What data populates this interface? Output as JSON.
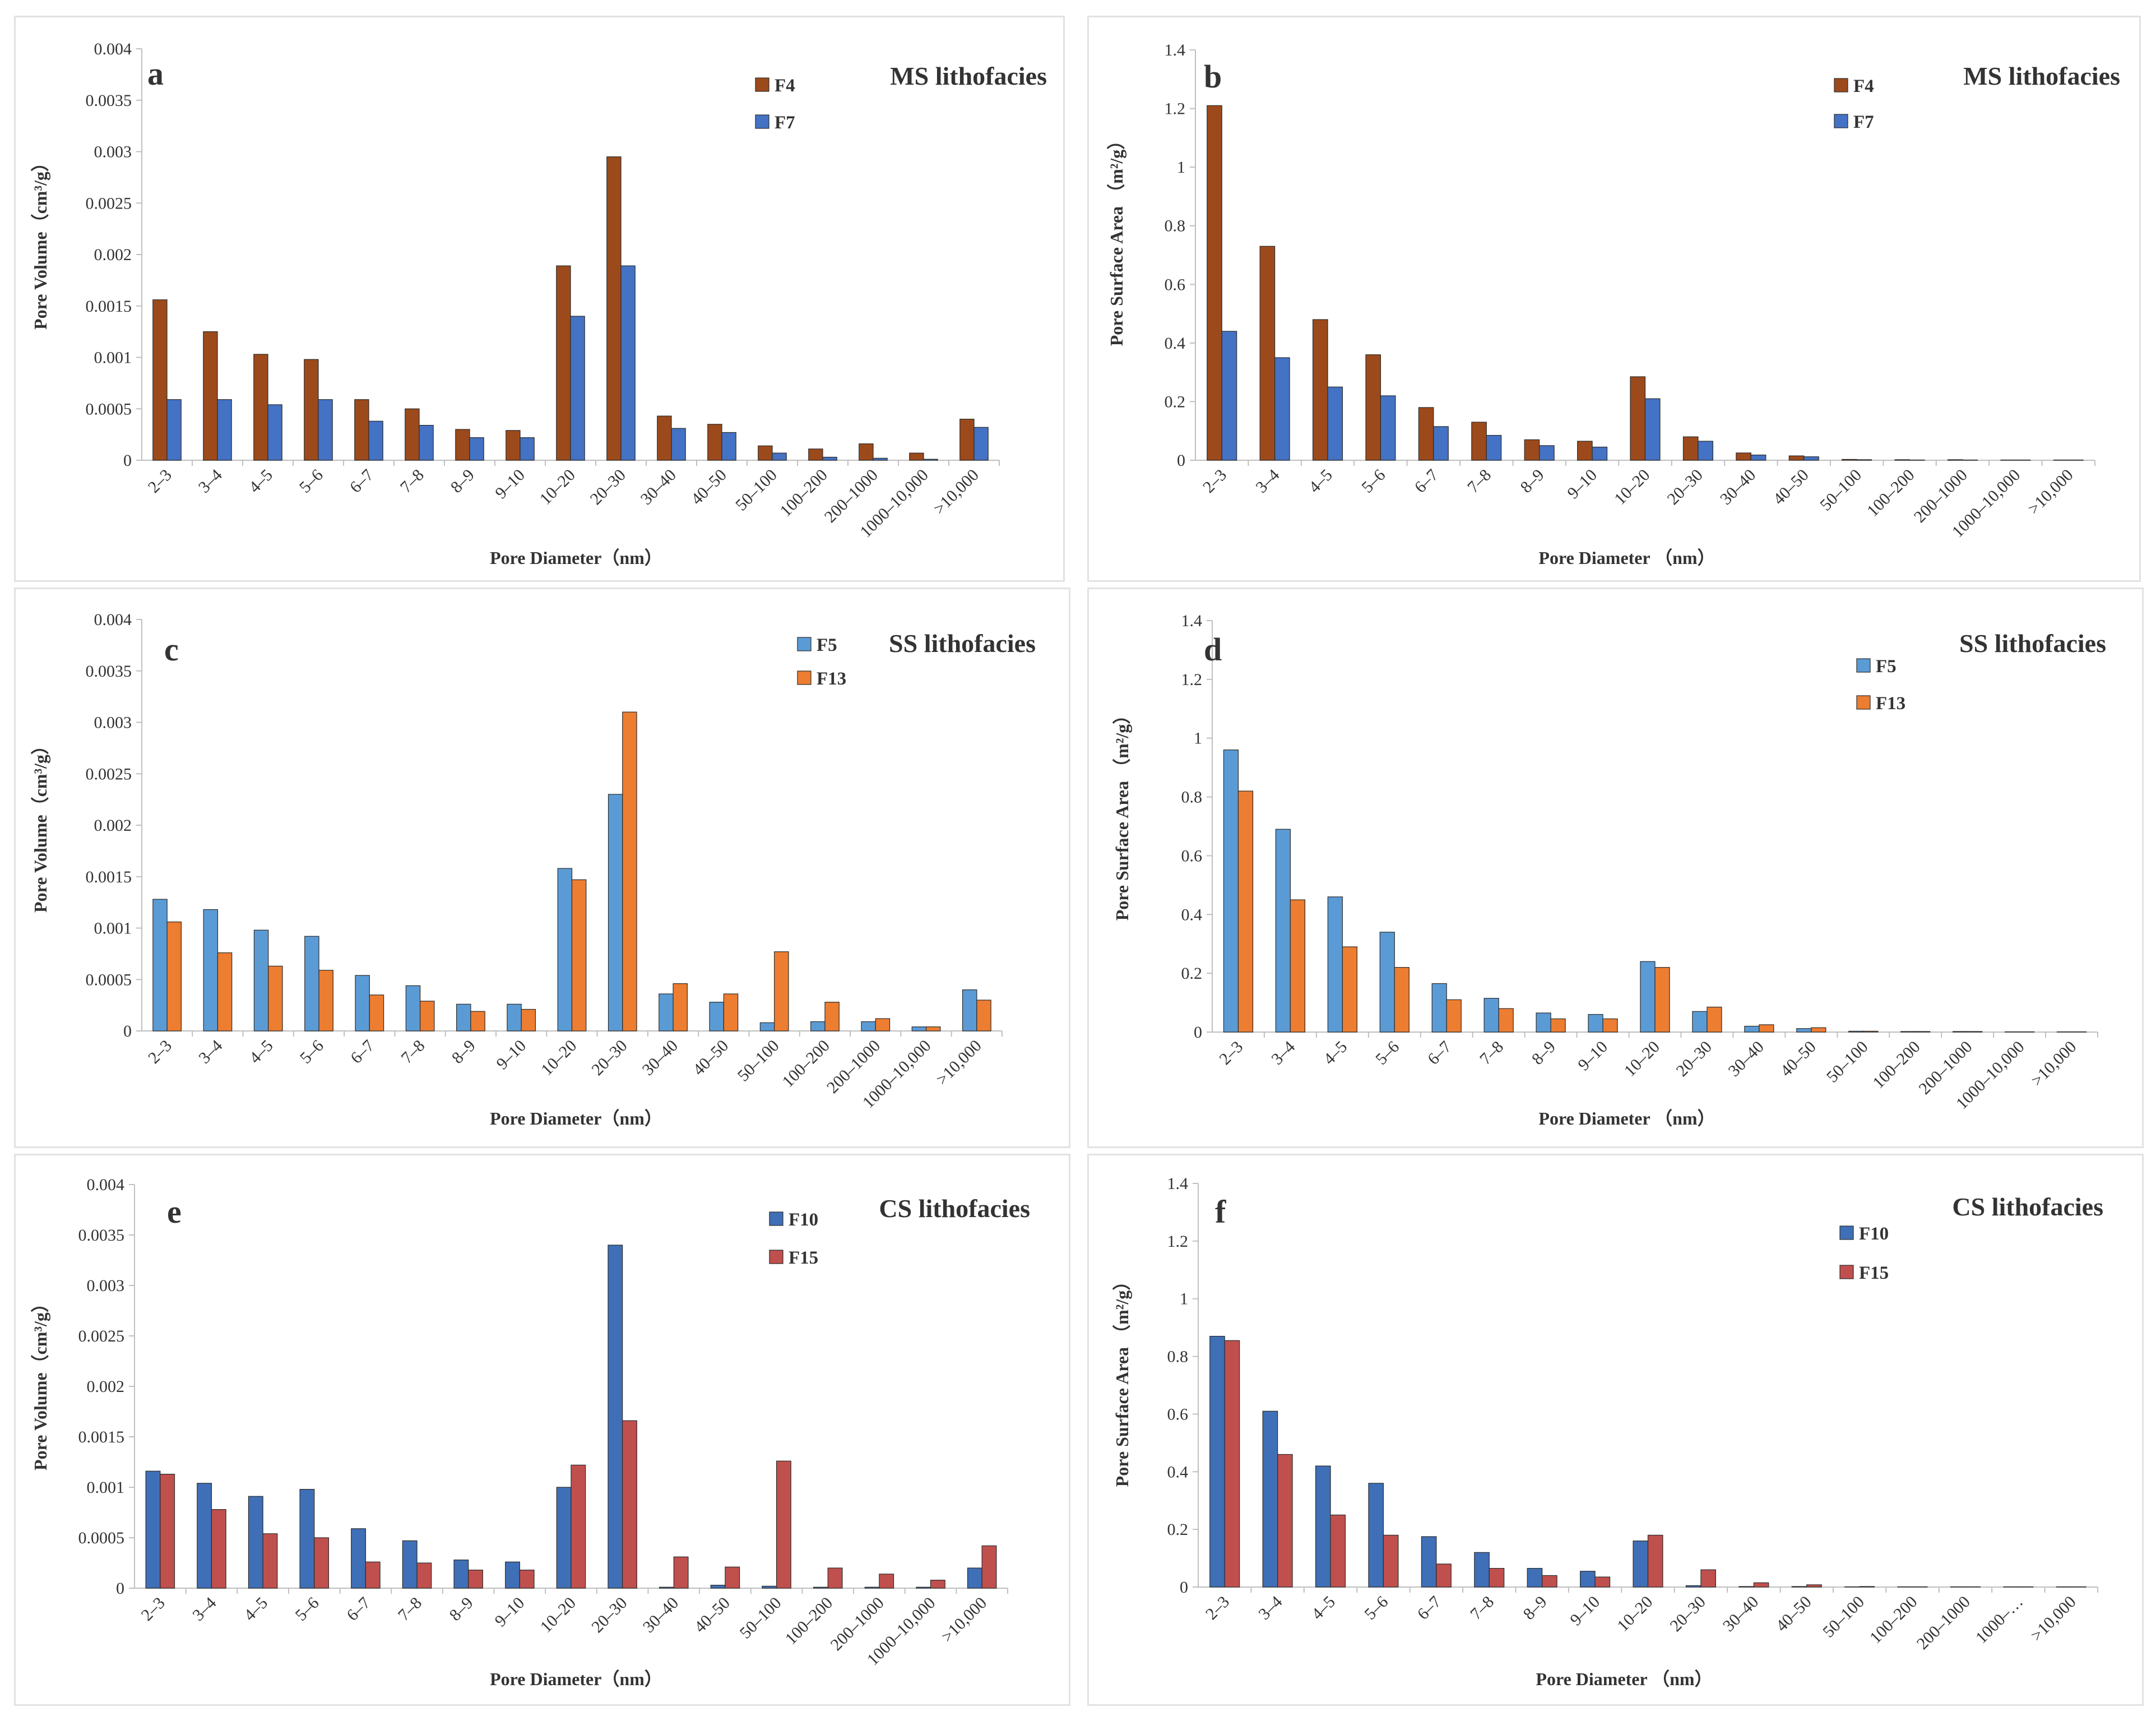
{
  "colors": {
    "F4": "#9c4a1b",
    "F7": "#4472c4",
    "F5": "#5b9bd5",
    "F13": "#ed7d31",
    "F10": "#3f6fb6",
    "F15": "#c0504d"
  },
  "chart_data": [
    {
      "id": "a",
      "type": "bar",
      "letter": "a",
      "title": "MS lithofacies",
      "xlabel": "Pore Diameter（nm）",
      "ylabel": "Pore Volume（cm³/g）",
      "ylim": [
        0,
        0.004
      ],
      "yticks": [
        "0",
        "0.0005",
        "0.001",
        "0.0015",
        "0.002",
        "0.0025",
        "0.003",
        "0.0035",
        "0.004"
      ],
      "categories": [
        "2–3",
        "3–4",
        "4–5",
        "5–6",
        "6–7",
        "7–8",
        "8–9",
        "9–10",
        "10–20",
        "20–30",
        "30–40",
        "40–50",
        "50–100",
        "100–200",
        "200–1000",
        "1000–10,000",
        ">10,000"
      ],
      "series": [
        {
          "name": "F4",
          "color": "#9c4a1b",
          "values": [
            0.00156,
            0.00125,
            0.00103,
            0.00098,
            0.00059,
            0.0005,
            0.0003,
            0.00029,
            0.00189,
            0.00295,
            0.00043,
            0.00035,
            0.00014,
            0.00011,
            0.00016,
            7e-05,
            0.0004
          ]
        },
        {
          "name": "F7",
          "color": "#4472c4",
          "values": [
            0.00059,
            0.00059,
            0.00054,
            0.00059,
            0.00038,
            0.00034,
            0.00022,
            0.00022,
            0.0014,
            0.00189,
            0.00031,
            0.00027,
            7e-05,
            3e-05,
            2e-05,
            1e-05,
            0.00032
          ]
        }
      ]
    },
    {
      "id": "b",
      "type": "bar",
      "letter": "b",
      "title": "MS lithofacies",
      "xlabel": "Pore Diameter （nm）",
      "ylabel": "Pore Surface Area （m²/g）",
      "ylim": [
        0,
        1.4
      ],
      "yticks": [
        "0",
        "0.2",
        "0.4",
        "0.6",
        "0.8",
        "1",
        "1.2",
        "1.4"
      ],
      "categories": [
        "2–3",
        "3–4",
        "4–5",
        "5–6",
        "6–7",
        "7–8",
        "8–9",
        "9–10",
        "10–20",
        "20–30",
        "30–40",
        "40–50",
        "50–100",
        "100–200",
        "200–1000",
        "1000–10,000",
        ">10,000"
      ],
      "series": [
        {
          "name": "F4",
          "color": "#9c4a1b",
          "values": [
            1.21,
            0.73,
            0.48,
            0.36,
            0.18,
            0.13,
            0.07,
            0.065,
            0.285,
            0.08,
            0.025,
            0.015,
            0.003,
            0.002,
            0.002,
            0.001,
            0.001
          ]
        },
        {
          "name": "F7",
          "color": "#4472c4",
          "values": [
            0.44,
            0.35,
            0.25,
            0.22,
            0.115,
            0.085,
            0.05,
            0.045,
            0.21,
            0.065,
            0.018,
            0.012,
            0.002,
            0.001,
            0.001,
            0.001,
            0.001
          ]
        }
      ]
    },
    {
      "id": "c",
      "type": "bar",
      "letter": "c",
      "title": "SS lithofacies",
      "xlabel": "Pore Diameter（nm）",
      "ylabel": "Pore Volume（cm³/g）",
      "ylim": [
        0,
        0.004
      ],
      "yticks": [
        "0",
        "0.0005",
        "0.001",
        "0.0015",
        "0.002",
        "0.0025",
        "0.003",
        "0.0035",
        "0.004"
      ],
      "categories": [
        "2–3",
        "3–4",
        "4–5",
        "5–6",
        "6–7",
        "7–8",
        "8–9",
        "9–10",
        "10–20",
        "20–30",
        "30–40",
        "40–50",
        "50–100",
        "100–200",
        "200–1000",
        "1000–10,000",
        ">10,000"
      ],
      "series": [
        {
          "name": "F5",
          "color": "#5b9bd5",
          "values": [
            0.00128,
            0.00118,
            0.00098,
            0.00092,
            0.00054,
            0.00044,
            0.00026,
            0.00026,
            0.00158,
            0.0023,
            0.00036,
            0.00028,
            8e-05,
            9e-05,
            9e-05,
            4e-05,
            0.0004
          ]
        },
        {
          "name": "F13",
          "color": "#ed7d31",
          "values": [
            0.00106,
            0.00076,
            0.00063,
            0.00059,
            0.00035,
            0.00029,
            0.00019,
            0.00021,
            0.00147,
            0.0031,
            0.00046,
            0.00036,
            0.00077,
            0.00028,
            0.00012,
            4e-05,
            0.0003
          ]
        }
      ]
    },
    {
      "id": "d",
      "type": "bar",
      "letter": "d",
      "title": "SS lithofacies",
      "xlabel": "Pore Diameter （nm）",
      "ylabel": "Pore Surface Area （m²/g）",
      "ylim": [
        0,
        1.4
      ],
      "yticks": [
        "0",
        "0.2",
        "0.4",
        "0.6",
        "0.8",
        "1",
        "1.2",
        "1.4"
      ],
      "categories": [
        "2–3",
        "3–4",
        "4–5",
        "5–6",
        "6–7",
        "7–8",
        "8–9",
        "9–10",
        "10–20",
        "20–30",
        "30–40",
        "40–50",
        "50–100",
        "100–200",
        "200–1000",
        "1000–10,000",
        ">10,000"
      ],
      "series": [
        {
          "name": "F5",
          "color": "#5b9bd5",
          "values": [
            0.96,
            0.69,
            0.46,
            0.34,
            0.165,
            0.115,
            0.065,
            0.06,
            0.24,
            0.07,
            0.02,
            0.012,
            0.003,
            0.002,
            0.002,
            0.001,
            0.001
          ]
        },
        {
          "name": "F13",
          "color": "#ed7d31",
          "values": [
            0.82,
            0.45,
            0.29,
            0.22,
            0.11,
            0.08,
            0.045,
            0.045,
            0.22,
            0.085,
            0.025,
            0.015,
            0.003,
            0.002,
            0.002,
            0.001,
            0.001
          ]
        }
      ]
    },
    {
      "id": "e",
      "type": "bar",
      "letter": "e",
      "title": "CS lithofacies",
      "xlabel": "Pore Diameter（nm）",
      "ylabel": "Pore Volume（cm³/g）",
      "ylim": [
        0,
        0.004
      ],
      "yticks": [
        "0",
        "0.0005",
        "0.001",
        "0.0015",
        "0.002",
        "0.0025",
        "0.003",
        "0.0035",
        "0.004"
      ],
      "categories": [
        "2–3",
        "3–4",
        "4–5",
        "5–6",
        "6–7",
        "7–8",
        "8–9",
        "9–10",
        "10–20",
        "20–30",
        "30–40",
        "40–50",
        "50–100",
        "100–200",
        "200–1000",
        "1000–10,000",
        ">10,000"
      ],
      "series": [
        {
          "name": "F10",
          "color": "#3f6fb6",
          "values": [
            0.00116,
            0.00104,
            0.00091,
            0.00098,
            0.00059,
            0.00047,
            0.00028,
            0.00026,
            0.001,
            0.0034,
            1e-05,
            3e-05,
            2e-05,
            1e-05,
            1e-05,
            1e-05,
            0.0002
          ]
        },
        {
          "name": "F15",
          "color": "#c0504d",
          "values": [
            0.00113,
            0.00078,
            0.00054,
            0.0005,
            0.00026,
            0.00025,
            0.00018,
            0.00018,
            0.00122,
            0.00166,
            0.00031,
            0.00021,
            0.00126,
            0.0002,
            0.00014,
            8e-05,
            0.00042
          ]
        }
      ]
    },
    {
      "id": "f",
      "type": "bar",
      "letter": "f",
      "title": "CS lithofacies",
      "xlabel": "Pore Diameter （nm）",
      "ylabel": "Pore Surface Area （m²/g）",
      "ylim": [
        0,
        1.4
      ],
      "yticks": [
        "0",
        "0.2",
        "0.4",
        "0.6",
        "0.8",
        "1",
        "1.2",
        "1.4"
      ],
      "categories": [
        "2–3",
        "3–4",
        "4–5",
        "5–6",
        "6–7",
        "7–8",
        "8–9",
        "9–10",
        "10–20",
        "20–30",
        "30–40",
        "40–50",
        "50–100",
        "100–200",
        "200–1000",
        "1000–…",
        ">10,000"
      ],
      "series": [
        {
          "name": "F10",
          "color": "#3f6fb6",
          "values": [
            0.87,
            0.61,
            0.42,
            0.36,
            0.175,
            0.12,
            0.065,
            0.055,
            0.16,
            0.005,
            0.002,
            0.002,
            0.001,
            0.001,
            0.001,
            0.001,
            0.001
          ]
        },
        {
          "name": "F15",
          "color": "#c0504d",
          "values": [
            0.855,
            0.46,
            0.25,
            0.18,
            0.08,
            0.065,
            0.04,
            0.035,
            0.18,
            0.06,
            0.015,
            0.008,
            0.002,
            0.001,
            0.001,
            0.001,
            0.001
          ]
        }
      ]
    }
  ]
}
